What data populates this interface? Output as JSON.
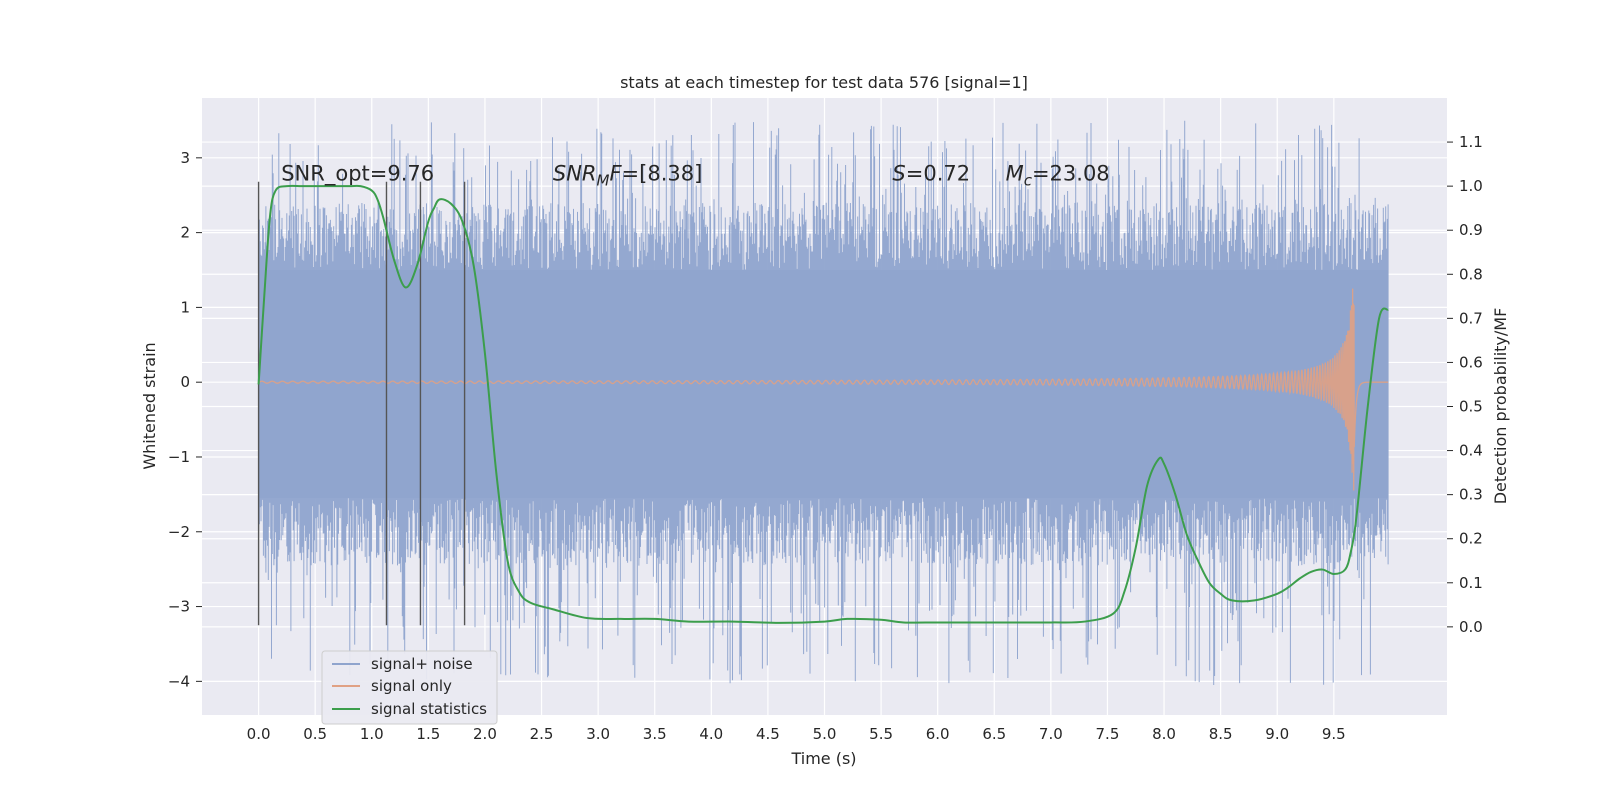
{
  "chart_data": {
    "type": "line",
    "title": "stats at each timestep for test data 576 [signal=1]",
    "xlabel": "Time (s)",
    "ylabel": "Whitened strain",
    "ylabel_right": "Detection probability/MF",
    "xlim": [
      -0.5,
      10.5
    ],
    "ylim": [
      -4.45,
      3.8
    ],
    "ylim_right": [
      -0.2,
      1.2
    ],
    "x_ticks": [
      "0.0",
      "0.5",
      "1.0",
      "1.5",
      "2.0",
      "2.5",
      "3.0",
      "3.5",
      "4.0",
      "4.5",
      "5.0",
      "5.5",
      "6.0",
      "6.5",
      "7.0",
      "7.5",
      "8.0",
      "8.5",
      "9.0",
      "9.5"
    ],
    "y_ticks": [
      "3",
      "2",
      "1",
      "0",
      "−1",
      "−2",
      "−3",
      "−4"
    ],
    "y_right_ticks": [
      "1.1",
      "1.0",
      "0.9",
      "0.8",
      "0.7",
      "0.6",
      "0.5",
      "0.4",
      "0.3",
      "0.2",
      "0.1",
      "0.0"
    ],
    "grid": true,
    "legend_position": "lower-left",
    "annotations": [
      {
        "parts": [
          {
            "t": "SNR_opt=9.76"
          }
        ],
        "x": 0.2
      },
      {
        "parts": [
          {
            "t": "SNR",
            "i": true
          },
          {
            "t": "M",
            "i": true,
            "sub": true
          },
          {
            "t": "F",
            "i": true
          },
          {
            "t": "=[8.38]"
          }
        ],
        "x": 2.6
      },
      {
        "parts": [
          {
            "t": "S",
            "i": true
          },
          {
            "t": "=0.72"
          }
        ],
        "x": 5.6
      },
      {
        "parts": [
          {
            "t": "M",
            "i": true
          },
          {
            "t": "c",
            "i": true,
            "sub": true
          },
          {
            "t": "=23.08"
          }
        ],
        "x": 6.6
      }
    ],
    "annotation_y": 2.7,
    "vertical_markers": [
      {
        "x": 0.0,
        "y": [
          -3.25,
          2.68
        ]
      },
      {
        "x": 1.13,
        "y": [
          -3.25,
          2.68
        ]
      },
      {
        "x": 1.43,
        "y": [
          -3.25,
          2.68
        ]
      },
      {
        "x": 1.82,
        "y": [
          -3.25,
          2.68
        ]
      }
    ],
    "series": [
      {
        "name": "signal+ noise",
        "kind": "noise-band",
        "color": "#8fa4cd",
        "x_range": [
          0.0,
          9.98
        ],
        "dense_range": [
          -1.55,
          1.5
        ],
        "spike_range": [
          -4.05,
          3.5
        ]
      },
      {
        "name": "signal only",
        "kind": "chirp",
        "color": "#e0a184",
        "x_range": [
          0.0,
          9.98
        ],
        "merger_x": 9.68,
        "peak_amplitude": 1.9
      },
      {
        "name": "signal statistics",
        "axis": "right",
        "color": "#3c9e4c",
        "x": [
          0.0,
          0.05,
          0.1,
          0.15,
          0.25,
          0.4,
          0.6,
          0.8,
          0.9,
          1.0,
          1.05,
          1.1,
          1.2,
          1.3,
          1.4,
          1.5,
          1.55,
          1.6,
          1.7,
          1.8,
          1.9,
          2.0,
          2.1,
          2.2,
          2.3,
          2.4,
          2.6,
          2.9,
          3.2,
          3.5,
          3.8,
          4.2,
          4.6,
          5.0,
          5.2,
          5.5,
          5.7,
          6.0,
          6.3,
          6.6,
          7.0,
          7.3,
          7.55,
          7.65,
          7.75,
          7.85,
          7.95,
          8.0,
          8.1,
          8.2,
          8.3,
          8.4,
          8.5,
          8.6,
          8.8,
          9.0,
          9.1,
          9.2,
          9.3,
          9.4,
          9.5,
          9.6,
          9.65,
          9.7,
          9.8,
          9.9,
          9.98
        ],
        "values": [
          0.55,
          0.75,
          0.93,
          0.99,
          1.0,
          1.0,
          1.0,
          1.0,
          1.0,
          0.99,
          0.97,
          0.93,
          0.83,
          0.77,
          0.82,
          0.92,
          0.95,
          0.97,
          0.96,
          0.92,
          0.82,
          0.62,
          0.35,
          0.15,
          0.08,
          0.055,
          0.04,
          0.02,
          0.018,
          0.018,
          0.012,
          0.012,
          0.009,
          0.012,
          0.018,
          0.016,
          0.01,
          0.01,
          0.01,
          0.01,
          0.01,
          0.012,
          0.03,
          0.08,
          0.18,
          0.32,
          0.38,
          0.37,
          0.3,
          0.21,
          0.15,
          0.1,
          0.075,
          0.06,
          0.06,
          0.075,
          0.09,
          0.11,
          0.125,
          0.13,
          0.12,
          0.13,
          0.17,
          0.25,
          0.5,
          0.7,
          0.72
        ]
      }
    ]
  }
}
